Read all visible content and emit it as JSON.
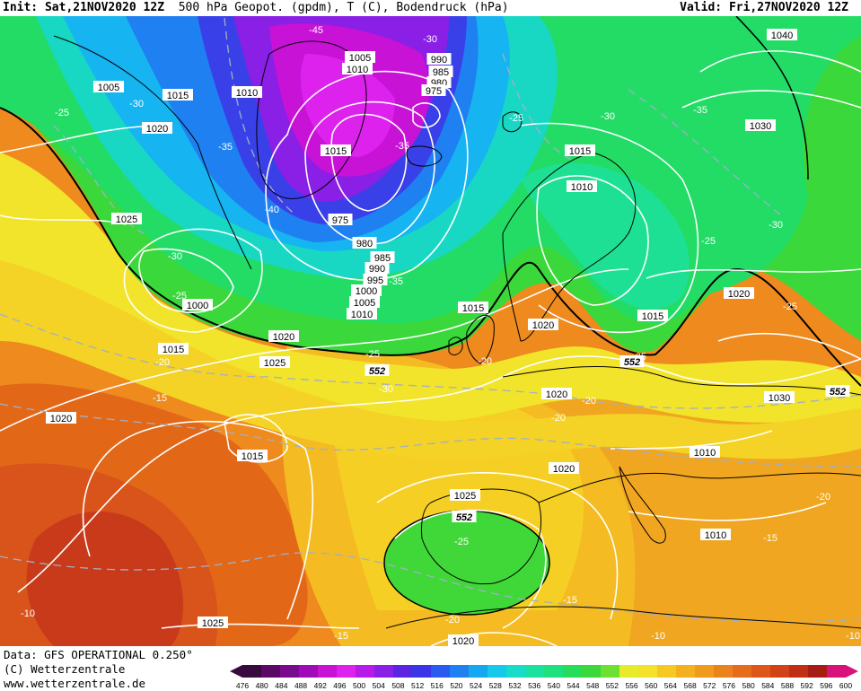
{
  "header": {
    "init_label": "Init:",
    "init_value": "Sat,21NOV2020 12Z",
    "field_description": "500 hPa Geopot. (gpdm), T (C), Bodendruck (hPa)",
    "valid_label": "Valid:",
    "valid_value": "Fri,27NOV2020 12Z"
  },
  "footer": {
    "data_source": "Data: GFS OPERATIONAL 0.250°",
    "copyright": "(C) Wetterzentrale",
    "url": "www.wetterzentrale.de"
  },
  "colorscale": {
    "ticks": [
      "476",
      "480",
      "484",
      "488",
      "492",
      "496",
      "500",
      "504",
      "508",
      "512",
      "516",
      "520",
      "524",
      "528",
      "532",
      "536",
      "540",
      "544",
      "548",
      "552",
      "556",
      "560",
      "564",
      "568",
      "572",
      "576",
      "580",
      "584",
      "588",
      "592",
      "596",
      "600"
    ],
    "colors": [
      "#3a0a3e",
      "#5a0a66",
      "#7a0a8e",
      "#a00ab8",
      "#c812d6",
      "#dd22ee",
      "#b81ae8",
      "#8a1fe6",
      "#5a24e0",
      "#3a36e8",
      "#2a5aee",
      "#1f80f2",
      "#16a6f2",
      "#16c8ea",
      "#18dcc8",
      "#1ae0a0",
      "#1ee07c",
      "#26dc58",
      "#3ad83a",
      "#70e030",
      "#e6ec2a",
      "#f4e22a",
      "#f6c824",
      "#f4b020",
      "#f09a1e",
      "#ec821c",
      "#e66c1a",
      "#de5618",
      "#d24216",
      "#c02e16",
      "#a81c16",
      "#d8127a"
    ]
  },
  "pressure_labels": [
    {
      "text": "1005"
    },
    {
      "text": "1015"
    },
    {
      "text": "1010"
    },
    {
      "text": "1020"
    },
    {
      "text": "1005"
    },
    {
      "text": "1010"
    },
    {
      "text": "990"
    },
    {
      "text": "985"
    },
    {
      "text": "980"
    },
    {
      "text": "975"
    },
    {
      "text": "1015"
    },
    {
      "text": "1040"
    },
    {
      "text": "1030"
    },
    {
      "text": "1015"
    },
    {
      "text": "1010"
    },
    {
      "text": "1025"
    },
    {
      "text": "975"
    },
    {
      "text": "980"
    },
    {
      "text": "985"
    },
    {
      "text": "990"
    },
    {
      "text": "995"
    },
    {
      "text": "1000"
    },
    {
      "text": "1005"
    },
    {
      "text": "1010"
    },
    {
      "text": "1000"
    },
    {
      "text": "1015"
    },
    {
      "text": "1020"
    },
    {
      "text": "1015"
    },
    {
      "text": "1020"
    },
    {
      "text": "1015"
    },
    {
      "text": "1025"
    },
    {
      "text": "1020"
    },
    {
      "text": "1020"
    },
    {
      "text": "1030"
    },
    {
      "text": "1020"
    },
    {
      "text": "1015"
    },
    {
      "text": "1010"
    },
    {
      "text": "1020"
    },
    {
      "text": "1025"
    },
    {
      "text": "1010"
    },
    {
      "text": "1025"
    },
    {
      "text": "1020"
    }
  ],
  "temp_labels": [
    {
      "text": "-45"
    },
    {
      "text": "-30"
    },
    {
      "text": "-25"
    },
    {
      "text": "-30"
    },
    {
      "text": "-35"
    },
    {
      "text": "-35"
    },
    {
      "text": "-25"
    },
    {
      "text": "-30"
    },
    {
      "text": "-35"
    },
    {
      "text": "-40"
    },
    {
      "text": "-30"
    },
    {
      "text": "-25"
    },
    {
      "text": "-30"
    },
    {
      "text": "-25"
    },
    {
      "text": "-20"
    },
    {
      "text": "-15"
    },
    {
      "text": "-25"
    },
    {
      "text": "-20"
    },
    {
      "text": "-30"
    },
    {
      "text": "-25"
    },
    {
      "text": "-20"
    },
    {
      "text": "-20"
    },
    {
      "text": "-25"
    },
    {
      "text": "-25"
    },
    {
      "text": "-20"
    },
    {
      "text": "-15"
    },
    {
      "text": "-15"
    },
    {
      "text": "-20"
    },
    {
      "text": "-10"
    },
    {
      "text": "-15"
    },
    {
      "text": "-10"
    },
    {
      "text": "-10"
    },
    {
      "text": "-35"
    }
  ],
  "height_labels": [
    {
      "text": "552"
    },
    {
      "text": "552"
    },
    {
      "text": "552"
    },
    {
      "text": "552"
    }
  ]
}
